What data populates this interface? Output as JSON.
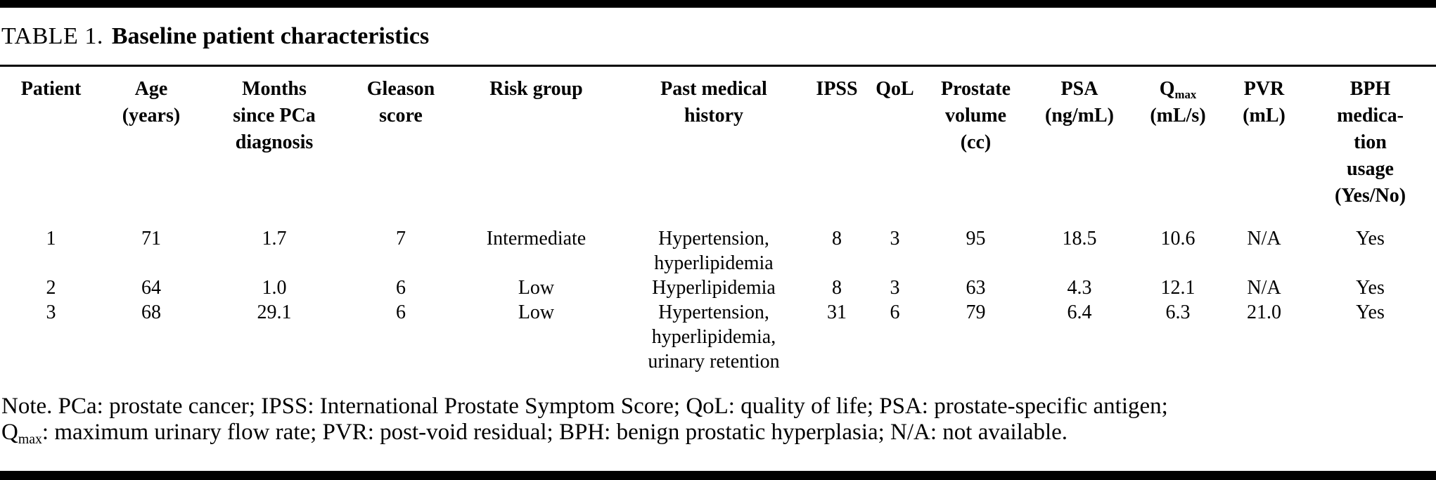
{
  "title": {
    "label": "TABLE 1.",
    "text": "Baseline patient characteristics"
  },
  "colors": {
    "text": "#000000",
    "background": "#ffffff",
    "rule": "#000000"
  },
  "table": {
    "headers": [
      [
        "Patient"
      ],
      [
        "Age",
        "(years)"
      ],
      [
        "Months",
        "since PCa",
        "diagnosis"
      ],
      [
        "Gleason",
        "score"
      ],
      [
        "Risk group"
      ],
      [
        "Past medical",
        "history"
      ],
      [
        "IPSS"
      ],
      [
        "QoL"
      ],
      [
        "Prostate",
        "volume",
        "(cc)"
      ],
      [
        "PSA",
        "(ng/mL)"
      ],
      [
        "Q",
        "max",
        "(mL/s)"
      ],
      [
        "PVR",
        "(mL)"
      ],
      [
        "BPH",
        "medica-",
        "tion",
        "usage",
        "(Yes/No)"
      ]
    ],
    "rows": [
      [
        [
          "1"
        ],
        [
          "71"
        ],
        [
          "1.7"
        ],
        [
          "7"
        ],
        [
          "Intermediate"
        ],
        [
          "Hypertension,",
          "hyperlipidemia"
        ],
        [
          "8"
        ],
        [
          "3"
        ],
        [
          "95"
        ],
        [
          "18.5"
        ],
        [
          "10.6"
        ],
        [
          "N/A"
        ],
        [
          "Yes"
        ]
      ],
      [
        [
          "2"
        ],
        [
          "64"
        ],
        [
          "1.0"
        ],
        [
          "6"
        ],
        [
          "Low"
        ],
        [
          "Hyperlipidemia"
        ],
        [
          "8"
        ],
        [
          "3"
        ],
        [
          "63"
        ],
        [
          "4.3"
        ],
        [
          "12.1"
        ],
        [
          "N/A"
        ],
        [
          "Yes"
        ]
      ],
      [
        [
          "3"
        ],
        [
          "68"
        ],
        [
          "29.1"
        ],
        [
          "6"
        ],
        [
          "Low"
        ],
        [
          "Hypertension,",
          "hyperlipidemia,",
          "urinary retention"
        ],
        [
          "31"
        ],
        [
          "6"
        ],
        [
          "79"
        ],
        [
          "6.4"
        ],
        [
          "6.3"
        ],
        [
          "21.0"
        ],
        [
          "Yes"
        ]
      ]
    ]
  },
  "note": {
    "line1": "Note. PCa: prostate cancer; IPSS: International Prostate Symptom Score; QoL: quality of life; PSA: prostate-specific antigen;",
    "line2_base": "Q",
    "line2_sub": "max",
    "line2_rest": ": maximum urinary flow rate; PVR: post-void residual; BPH: benign prostatic hyperplasia; N/A: not available."
  }
}
